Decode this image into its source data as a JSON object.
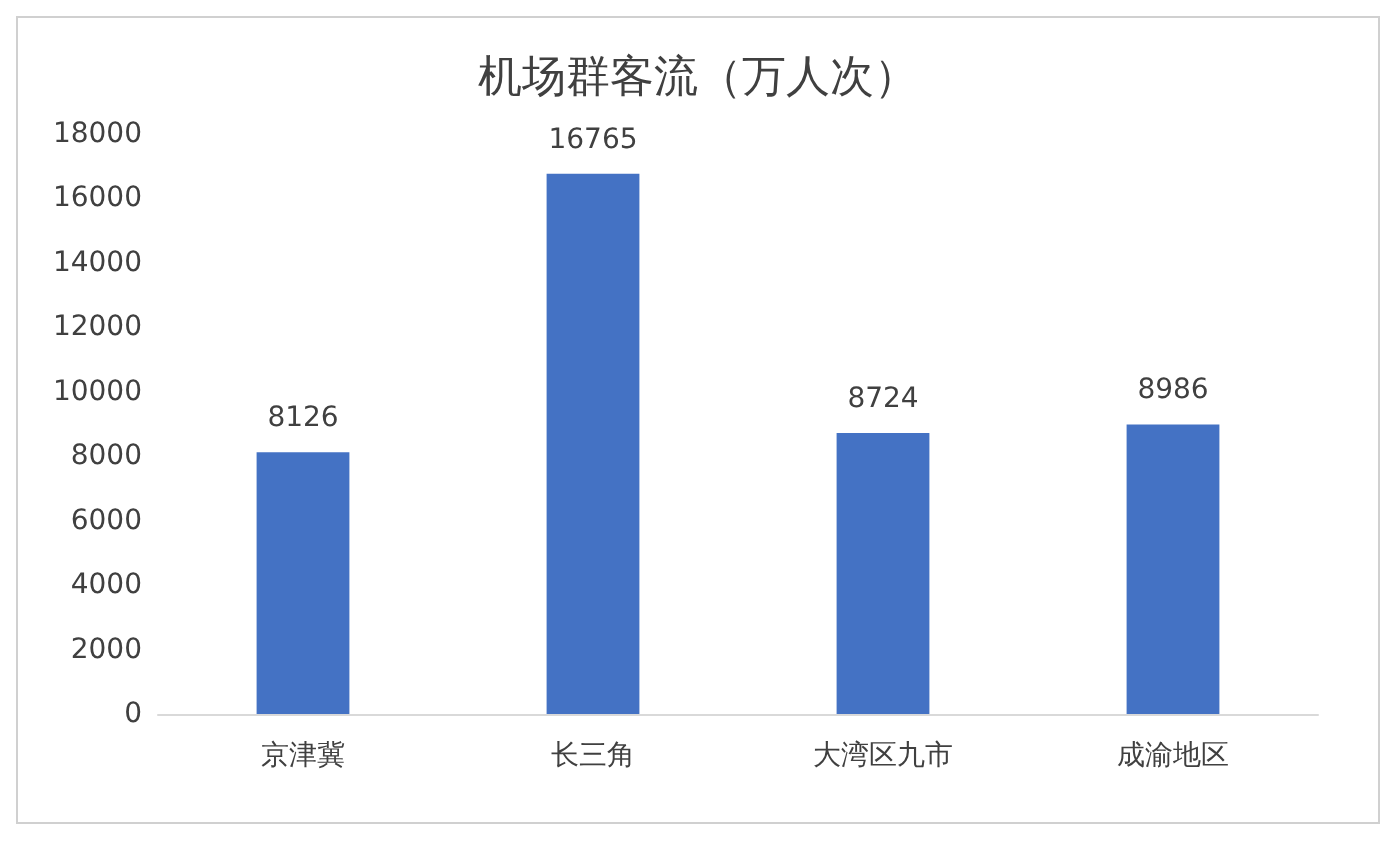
{
  "chart_data": {
    "type": "bar",
    "title": "机场群客流（万人次）",
    "categories": [
      "京津冀",
      "长三角",
      "大湾区九市",
      "成渝地区"
    ],
    "values": [
      8126,
      16765,
      8724,
      8986
    ],
    "color": "#4472c4",
    "ylim": [
      0,
      18000
    ],
    "yticks": [
      0,
      2000,
      4000,
      6000,
      8000,
      10000,
      12000,
      14000,
      16000,
      18000
    ],
    "grid": false,
    "data_labels": true
  }
}
